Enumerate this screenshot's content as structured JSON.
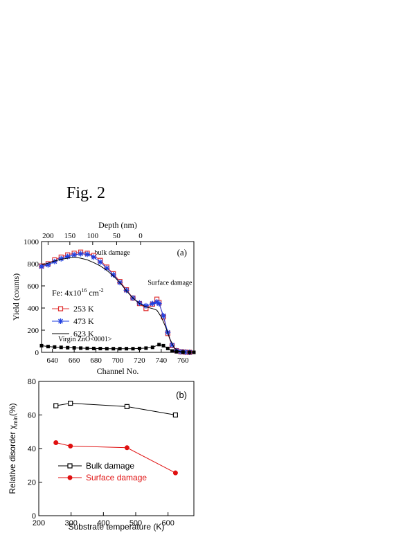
{
  "figure_title": "Fig. 2",
  "chart_data": [
    {
      "type": "line",
      "panel_label": "(a)",
      "xlabel": "Channel No.",
      "ylabel": "Yield (counts)",
      "top_axis_label": "Depth (nm)",
      "top_axis_ticks": [
        {
          "label": "200",
          "channel": 636
        },
        {
          "label": "150",
          "channel": 656
        },
        {
          "label": "100",
          "channel": 677
        },
        {
          "label": "50",
          "channel": 699
        },
        {
          "label": "0",
          "channel": 721
        }
      ],
      "xlim": [
        630,
        770
      ],
      "ylim": [
        0,
        1000
      ],
      "xticks": [
        640,
        660,
        680,
        700,
        720,
        740,
        760
      ],
      "yticks": [
        0,
        200,
        400,
        600,
        800,
        1000
      ],
      "annotations": {
        "bulk": "bulk damage",
        "surface": "Surface damage",
        "virgin": "Virgin ZnO<0001>"
      },
      "legend_title": {
        "base": "Fe: 4x10",
        "exp": "16",
        "unit": " cm",
        "unit_exp": "-2"
      },
      "legend_position": "left-middle",
      "series": [
        {
          "name": "253 K",
          "color": "#e03030",
          "marker": "open-square",
          "x": [
            630,
            636,
            642,
            648,
            654,
            660,
            666,
            672,
            678,
            684,
            690,
            696,
            702,
            708,
            714,
            720,
            726,
            732,
            736,
            738,
            742,
            746,
            750,
            754,
            758,
            762,
            766
          ],
          "y": [
            780,
            800,
            835,
            860,
            880,
            895,
            905,
            895,
            875,
            830,
            770,
            710,
            640,
            565,
            490,
            440,
            395,
            435,
            480,
            450,
            320,
            170,
            60,
            15,
            5,
            2,
            0
          ]
        },
        {
          "name": "473 K",
          "color": "#1f3fe0",
          "marker": "star",
          "x": [
            630,
            636,
            642,
            648,
            654,
            660,
            666,
            672,
            678,
            684,
            690,
            696,
            702,
            708,
            714,
            720,
            726,
            732,
            736,
            738,
            742,
            746,
            750,
            754,
            758,
            762,
            766
          ],
          "y": [
            775,
            790,
            820,
            845,
            865,
            880,
            890,
            885,
            860,
            815,
            760,
            700,
            630,
            560,
            490,
            445,
            420,
            440,
            455,
            440,
            330,
            180,
            65,
            15,
            5,
            2,
            0
          ]
        },
        {
          "name": "623 K",
          "color": "#000000",
          "marker": "none",
          "x": [
            630,
            636,
            642,
            648,
            654,
            660,
            666,
            672,
            678,
            684,
            690,
            696,
            702,
            708,
            714,
            720,
            726,
            732,
            736,
            740,
            744,
            748,
            752,
            756,
            760,
            764,
            768
          ],
          "y": [
            790,
            805,
            825,
            840,
            850,
            860,
            850,
            835,
            810,
            780,
            740,
            690,
            630,
            555,
            490,
            440,
            410,
            395,
            380,
            320,
            230,
            120,
            40,
            10,
            3,
            1,
            0
          ]
        },
        {
          "name": "Virgin ZnO<0001>",
          "color": "#000000",
          "marker": "filled-square",
          "x": [
            630,
            636,
            642,
            648,
            654,
            660,
            666,
            672,
            678,
            684,
            690,
            696,
            702,
            708,
            714,
            720,
            726,
            732,
            738,
            742,
            746,
            750,
            754,
            760,
            766,
            770
          ],
          "y": [
            60,
            52,
            48,
            45,
            42,
            40,
            38,
            36,
            35,
            34,
            33,
            33,
            33,
            33,
            33,
            35,
            38,
            45,
            70,
            60,
            35,
            12,
            5,
            2,
            0,
            0
          ]
        }
      ]
    },
    {
      "type": "line",
      "panel_label": "(b)",
      "xlabel": "Substrate temperature (K)",
      "ylabel": "Relative disorder χ",
      "ylabel_sub": "min",
      "ylabel_suffix": "(%)",
      "xlim": [
        200,
        680
      ],
      "ylim": [
        0,
        80
      ],
      "xticks": [
        200,
        300,
        400,
        500,
        600
      ],
      "yticks": [
        0,
        20,
        40,
        60,
        80
      ],
      "legend_position": "bottom-left",
      "series": [
        {
          "name": "Bulk damage",
          "color": "#000000",
          "marker": "open-square",
          "x": [
            253,
            298,
            473,
            623
          ],
          "y": [
            65.5,
            67,
            65,
            60
          ]
        },
        {
          "name": "Surface damage",
          "color": "#e01010",
          "marker": "filled-circle",
          "x": [
            253,
            298,
            473,
            623
          ],
          "y": [
            43.5,
            41.5,
            40.5,
            25.5
          ]
        }
      ]
    }
  ]
}
